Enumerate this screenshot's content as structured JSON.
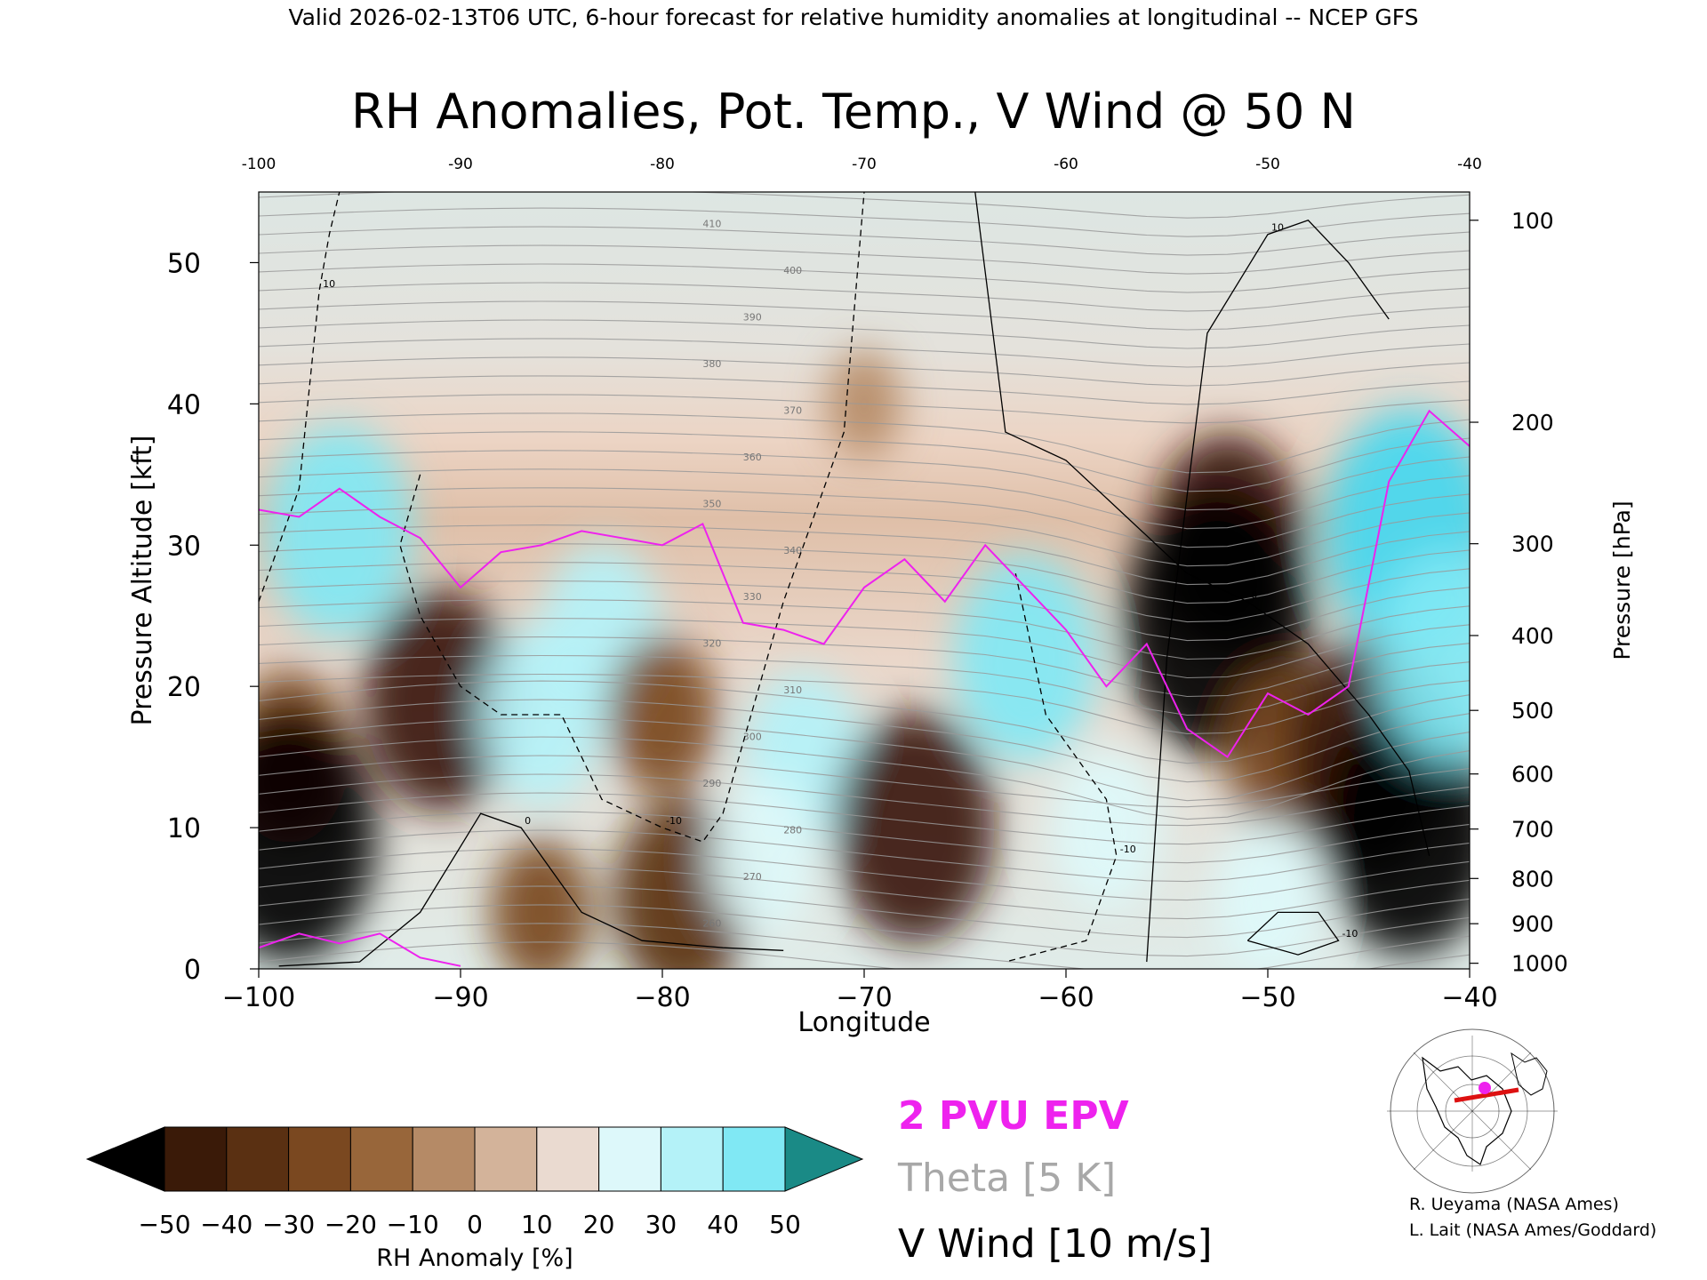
{
  "header": {
    "valid_line": "Valid 2026-02-13T06 UTC, 6-hour forecast for relative humidity anomalies at longitudinal -- NCEP GFS",
    "title": "RH Anomalies, Pot. Temp., V Wind @ 50 N"
  },
  "legend_labels": {
    "epv": "2 PVU EPV",
    "theta": "Theta [5 K]",
    "vwind": "V Wind [10 m/s]"
  },
  "credits": [
    "R. Ueyama (NASA Ames)",
    "L. Lait (NASA Ames/Goddard)"
  ],
  "colors": {
    "epv": "#ee22ee",
    "theta": "#999999",
    "vwind": "#000000",
    "rh_scale": [
      "#000000",
      "#3a1a08",
      "#5a3012",
      "#7a4820",
      "#98663a",
      "#b58a66",
      "#d3b39a",
      "#eadad0",
      "#ddf8fa",
      "#b4f2f8",
      "#80e8f4",
      "#44d8f0",
      "#16b8dc",
      "#0a8ab0",
      "#1a8a86"
    ]
  },
  "chart_data": {
    "type": "heatmap",
    "title": "RH Anomalies, Pot. Temp., V Wind @ 50 N",
    "xlabel": "Longitude",
    "ylabel": "Pressure Altitude [kft]",
    "ylabel_right": "Pressure [hPa]",
    "xlim": [
      -100,
      -40
    ],
    "ylim": [
      0,
      55
    ],
    "x_ticks": [
      -100,
      -90,
      -80,
      -70,
      -60,
      -50,
      -40
    ],
    "x_tick_labels": [
      "−100",
      "−90",
      "−80",
      "−70",
      "−60",
      "−50",
      "−40"
    ],
    "top_tick_labels": [
      "-100",
      "-90",
      "-80",
      "-70",
      "-60",
      "-50",
      "-40"
    ],
    "y_ticks": [
      0,
      10,
      20,
      30,
      40,
      50
    ],
    "y_tick_labels": [
      "0",
      "10",
      "20",
      "30",
      "40",
      "50"
    ],
    "pressure_ticks": [
      {
        "label": "100",
        "kft": 53.0
      },
      {
        "label": "200",
        "kft": 38.7
      },
      {
        "label": "300",
        "kft": 30.1
      },
      {
        "label": "400",
        "kft": 23.6
      },
      {
        "label": "500",
        "kft": 18.3
      },
      {
        "label": "600",
        "kft": 13.8
      },
      {
        "label": "700",
        "kft": 9.9
      },
      {
        "label": "800",
        "kft": 6.4
      },
      {
        "label": "900",
        "kft": 3.2
      },
      {
        "label": "1000",
        "kft": 0.4
      }
    ],
    "colorbar": {
      "label": "RH Anomaly [%]",
      "levels": [
        -50,
        -40,
        -30,
        -20,
        -10,
        0,
        10,
        20,
        30,
        40,
        50
      ],
      "tick_labels": [
        "−50",
        "−40",
        "−30",
        "−20",
        "−10",
        "0",
        "10",
        "20",
        "30",
        "40",
        "50"
      ]
    },
    "theta_levels_K": [
      260,
      270,
      280,
      290,
      300,
      310,
      320,
      330,
      340,
      350,
      360,
      370,
      380,
      390,
      400,
      410,
      420
    ],
    "rh_anomaly_blobs": [
      {
        "lon": -96.0,
        "kft": 31.0,
        "value": 42
      },
      {
        "lon": -98.5,
        "kft": 15.0,
        "value": -30
      },
      {
        "lon": -98.5,
        "kft": 9.5,
        "value": -55
      },
      {
        "lon": -91.0,
        "kft": 19.0,
        "value": -45
      },
      {
        "lon": -86.0,
        "kft": 18.0,
        "value": 32
      },
      {
        "lon": -83.0,
        "kft": 24.0,
        "value": 30
      },
      {
        "lon": -86.0,
        "kft": 4.0,
        "value": -22
      },
      {
        "lon": -79.0,
        "kft": 5.0,
        "value": -38
      },
      {
        "lon": -80.0,
        "kft": 18.0,
        "value": -25
      },
      {
        "lon": -73.0,
        "kft": 15.0,
        "value": 30
      },
      {
        "lon": -75.0,
        "kft": 8.0,
        "value": 25
      },
      {
        "lon": -67.5,
        "kft": 10.0,
        "value": -48
      },
      {
        "lon": -62.0,
        "kft": 22.0,
        "value": 40
      },
      {
        "lon": -58.0,
        "kft": 10.0,
        "value": 28
      },
      {
        "lon": -52.0,
        "kft": 30.0,
        "value": -45
      },
      {
        "lon": -52.5,
        "kft": 24.5,
        "value": -60
      },
      {
        "lon": -49.0,
        "kft": 15.0,
        "value": -30
      },
      {
        "lon": -45.0,
        "kft": 15.0,
        "value": -50
      },
      {
        "lon": -43.0,
        "kft": 10.0,
        "value": -55
      },
      {
        "lon": -50.0,
        "kft": 5.0,
        "value": 25
      },
      {
        "lon": -43.0,
        "kft": 31.0,
        "value": 52
      },
      {
        "lon": -41.0,
        "kft": 22.0,
        "value": 42
      },
      {
        "lon": -70.0,
        "kft": 40.0,
        "value": -10
      }
    ],
    "epv_2pvu_line": {
      "lon": [
        -100,
        -98,
        -96,
        -94,
        -92,
        -90,
        -88,
        -86,
        -84,
        -82,
        -80,
        -78,
        -76,
        -74,
        -72,
        -70,
        -68,
        -66,
        -64,
        -62,
        -60,
        -58,
        -56,
        -54,
        -52,
        -50,
        -48,
        -46,
        -44,
        -42,
        -40
      ],
      "kft": [
        32.5,
        32.0,
        34.0,
        32.0,
        30.5,
        27.0,
        29.5,
        30.0,
        31.0,
        30.5,
        30.0,
        31.5,
        24.5,
        24.0,
        23.0,
        27.0,
        29.0,
        26.0,
        30.0,
        27.0,
        24.0,
        20.0,
        23.0,
        17.0,
        15.0,
        19.5,
        18.0,
        20.0,
        34.5,
        39.5,
        37.0
      ]
    },
    "vwind_contours": [
      {
        "label": "10",
        "lon": [
          -100,
          -98,
          -97,
          -96.5,
          -96
        ],
        "kft": [
          26,
          34,
          48,
          52,
          55
        ],
        "dashed": true
      },
      {
        "label": "-10",
        "lon": [
          -92,
          -93,
          -92,
          -90,
          -88,
          -85,
          -83,
          -80,
          -78,
          -77,
          -76,
          -74,
          -71,
          -70
        ],
        "kft": [
          35,
          30,
          25,
          20,
          18,
          18,
          12,
          10,
          9,
          11,
          16,
          26,
          38,
          55
        ],
        "dashed": true
      },
      {
        "label": "0",
        "lon": [
          -99,
          -95,
          -92,
          -89,
          -87,
          -84,
          -81,
          -77,
          -74
        ],
        "kft": [
          0.2,
          0.5,
          4,
          11,
          10,
          4,
          2,
          1.5,
          1.3
        ],
        "dashed": false
      },
      {
        "label": "0",
        "lon": [
          -64.5,
          -63,
          -60,
          -57,
          -54,
          -51,
          -48,
          -45,
          -43,
          -42
        ],
        "kft": [
          55,
          38,
          36,
          32,
          28,
          26,
          23,
          18,
          14,
          8
        ],
        "dashed": false
      },
      {
        "label": "10",
        "lon": [
          -56,
          -55,
          -53,
          -50,
          -48,
          -46,
          -44
        ],
        "kft": [
          0.5,
          22,
          45,
          52,
          53,
          50,
          46
        ],
        "dashed": false
      },
      {
        "label": "-10",
        "lon": [
          -51,
          -49.5,
          -47.5,
          -46.5,
          -48.5,
          -51
        ],
        "kft": [
          2,
          4,
          4,
          2,
          1,
          2
        ],
        "dashed": false
      },
      {
        "label": "-10",
        "lon": [
          -62.5,
          -61,
          -58,
          -57.5,
          -59,
          -63
        ],
        "kft": [
          28,
          18,
          12,
          8,
          2,
          0.5
        ],
        "dashed": true
      }
    ]
  }
}
